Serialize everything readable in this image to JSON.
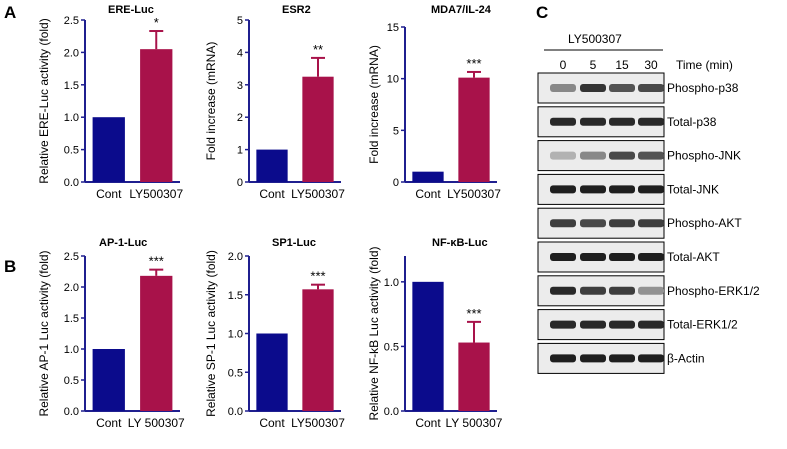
{
  "panels": {
    "a": "A",
    "b": "B",
    "c": "C"
  },
  "colors": {
    "cont": "#0b0b8c",
    "treat": "#a8124a",
    "axis": "#1f1f8f"
  },
  "chart_data": [
    {
      "type": "bar",
      "title": "ERE-Luc",
      "ylabel": "Relative ERE-Luc activity  (fold)",
      "categories": [
        "Cont",
        "LY500307"
      ],
      "values": [
        1.0,
        2.05
      ],
      "errors": [
        0,
        0.28
      ],
      "significance": [
        "",
        "*"
      ],
      "ylim": [
        0,
        2.5
      ],
      "yticks": [
        "0.0",
        "0.5",
        "1.0",
        "1.5",
        "2.0",
        "2.5"
      ]
    },
    {
      "type": "bar",
      "title": "ESR2",
      "ylabel": "Fold increase (mRNA)",
      "categories": [
        "Cont",
        "LY500307"
      ],
      "values": [
        1.0,
        3.25
      ],
      "errors": [
        0,
        0.58
      ],
      "significance": [
        "",
        "**"
      ],
      "ylim": [
        0,
        5
      ],
      "yticks": [
        "0",
        "1",
        "2",
        "3",
        "4",
        "5"
      ]
    },
    {
      "type": "bar",
      "title": "MDA7/IL-24",
      "ylabel": "Fold increase (mRNA)",
      "categories": [
        "Cont",
        "LY500307"
      ],
      "values": [
        1.0,
        10.1
      ],
      "errors": [
        0,
        0.55
      ],
      "significance": [
        "",
        "***"
      ],
      "ylim": [
        0,
        15
      ],
      "yticks": [
        "0",
        "5",
        "10",
        "15"
      ]
    },
    {
      "type": "bar",
      "title": "AP-1-Luc",
      "ylabel": "Relative AP-1 Luc activity  (fold)",
      "categories": [
        "Cont",
        "LY 500307"
      ],
      "values": [
        1.0,
        2.18
      ],
      "errors": [
        0,
        0.1
      ],
      "significance": [
        "",
        "***"
      ],
      "ylim": [
        0,
        2.5
      ],
      "yticks": [
        "0.0",
        "0.5",
        "1.0",
        "1.5",
        "2.0",
        "2.5"
      ]
    },
    {
      "type": "bar",
      "title": "SP1-Luc",
      "ylabel": "Relative SP-1 Luc activity  (fold)",
      "categories": [
        "Cont",
        "LY500307"
      ],
      "values": [
        1.0,
        1.57
      ],
      "errors": [
        0,
        0.06
      ],
      "significance": [
        "",
        "***"
      ],
      "ylim": [
        0,
        2.0
      ],
      "yticks": [
        "0.0",
        "0.5",
        "1.0",
        "1.5",
        "2.0"
      ]
    },
    {
      "type": "bar",
      "title": "NF-κB-Luc",
      "ylabel": "Relative NF-kB Luc activity  (fold)",
      "categories": [
        "Cont",
        "LY 500307"
      ],
      "values": [
        1.0,
        0.53
      ],
      "errors": [
        0,
        0.16
      ],
      "significance": [
        "",
        "***"
      ],
      "ylim": [
        0,
        1.2
      ],
      "yticks": [
        "0.0",
        "0.5",
        "1.0"
      ]
    }
  ],
  "western": {
    "treatment": "LY500307",
    "times": [
      "0",
      "5",
      "15",
      "30"
    ],
    "time_label": "Time (min)",
    "rows": [
      {
        "label": "Phospho-p38",
        "intensity": [
          0.45,
          0.85,
          0.7,
          0.75
        ]
      },
      {
        "label": "Total-p38",
        "intensity": [
          0.9,
          0.9,
          0.9,
          0.9
        ]
      },
      {
        "label": "Phospho-JNK",
        "intensity": [
          0.25,
          0.45,
          0.75,
          0.7
        ]
      },
      {
        "label": "Total-JNK",
        "intensity": [
          0.95,
          0.95,
          0.95,
          0.95
        ]
      },
      {
        "label": "Phospho-AKT",
        "intensity": [
          0.8,
          0.75,
          0.8,
          0.8
        ]
      },
      {
        "label": "Total-AKT",
        "intensity": [
          0.95,
          0.95,
          0.95,
          0.95
        ]
      },
      {
        "label": "Phospho-ERK1/2",
        "intensity": [
          0.9,
          0.8,
          0.8,
          0.4
        ]
      },
      {
        "label": "Total-ERK1/2",
        "intensity": [
          0.9,
          0.9,
          0.9,
          0.9
        ]
      },
      {
        "label": "β-Actin",
        "intensity": [
          0.95,
          0.95,
          0.95,
          0.95
        ]
      }
    ]
  }
}
